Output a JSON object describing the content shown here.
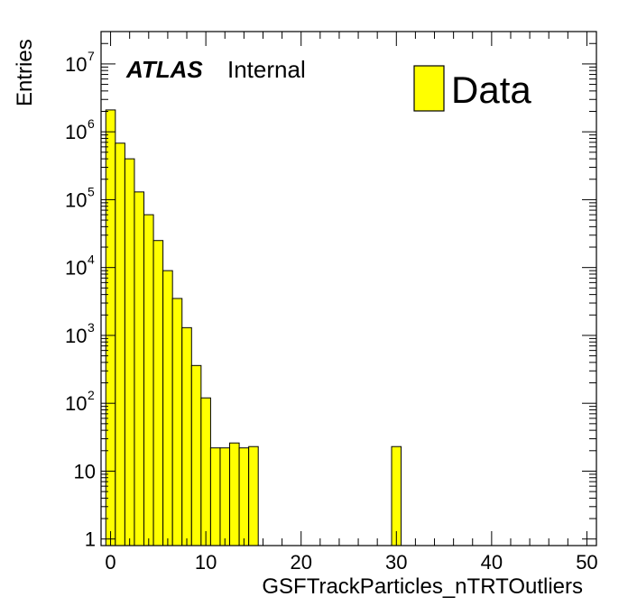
{
  "chart_data": {
    "type": "bar",
    "title": "",
    "xlabel": "GSFTrackParticles_nTRTOutliers",
    "ylabel": "Entries",
    "experiment_label": "ATLAS",
    "status_label": "Internal",
    "legend": [
      {
        "name": "Data",
        "color": "#ffff00"
      }
    ],
    "legend_placement": "top-right",
    "y_scale": "log",
    "xlim": [
      -1,
      51
    ],
    "ylim": [
      0.8,
      30000000
    ],
    "grid": false,
    "bin_width": 1,
    "x_ticks": [
      "0",
      "10",
      "20",
      "30",
      "40",
      "50"
    ],
    "y_ticks": [
      {
        "base": "1",
        "exp": ""
      },
      {
        "base": "10",
        "exp": ""
      },
      {
        "base": "10",
        "exp": "2"
      },
      {
        "base": "10",
        "exp": "3"
      },
      {
        "base": "10",
        "exp": "4"
      },
      {
        "base": "10",
        "exp": "5"
      },
      {
        "base": "10",
        "exp": "6"
      },
      {
        "base": "10",
        "exp": "7"
      }
    ],
    "bins": [
      {
        "x": -0.5,
        "value": 2100000
      },
      {
        "x": 0.5,
        "value": 680000
      },
      {
        "x": 1.5,
        "value": 400000
      },
      {
        "x": 2.5,
        "value": 130000
      },
      {
        "x": 3.5,
        "value": 60000
      },
      {
        "x": 4.5,
        "value": 25000
      },
      {
        "x": 5.5,
        "value": 9000
      },
      {
        "x": 6.5,
        "value": 3500
      },
      {
        "x": 7.5,
        "value": 1300
      },
      {
        "x": 8.5,
        "value": 360
      },
      {
        "x": 9.5,
        "value": 120
      },
      {
        "x": 10.5,
        "value": 22
      },
      {
        "x": 11.5,
        "value": 22
      },
      {
        "x": 12.5,
        "value": 26
      },
      {
        "x": 13.5,
        "value": 22
      },
      {
        "x": 14.5,
        "value": 23
      },
      {
        "x": 29.5,
        "value": 23
      }
    ],
    "colors": {
      "fill": "#ffff00",
      "stroke": "#000000"
    }
  }
}
